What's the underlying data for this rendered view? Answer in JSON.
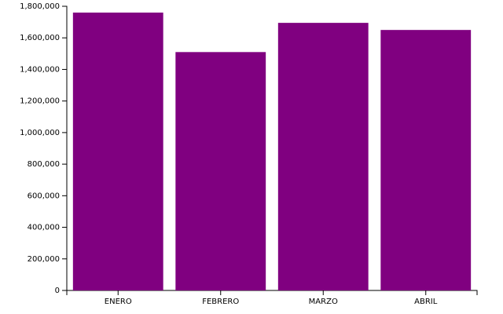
{
  "chart_data": {
    "type": "bar",
    "categories": [
      "ENERO",
      "FEBRERO",
      "MARZO",
      "ABRIL"
    ],
    "values": [
      1760000,
      1510000,
      1695000,
      1650000
    ],
    "color": "#800080",
    "ylim": [
      0,
      1800000
    ],
    "yticks": [
      0,
      {
        "value": 200000,
        "label": "200,000"
      },
      {
        "value": 400000,
        "label": "400,000"
      },
      {
        "value": 600000,
        "label": "600,000"
      },
      {
        "value": 800000,
        "label": "800,000"
      },
      {
        "value": 1000000,
        "label": "1,000,000"
      },
      {
        "value": 1200000,
        "label": "1,200,000"
      },
      {
        "value": 1400000,
        "label": "1,400,000"
      },
      {
        "value": 1600000,
        "label": "1,600,000"
      },
      {
        "value": 1800000,
        "label": "1,800,000"
      }
    ],
    "grid": false
  }
}
